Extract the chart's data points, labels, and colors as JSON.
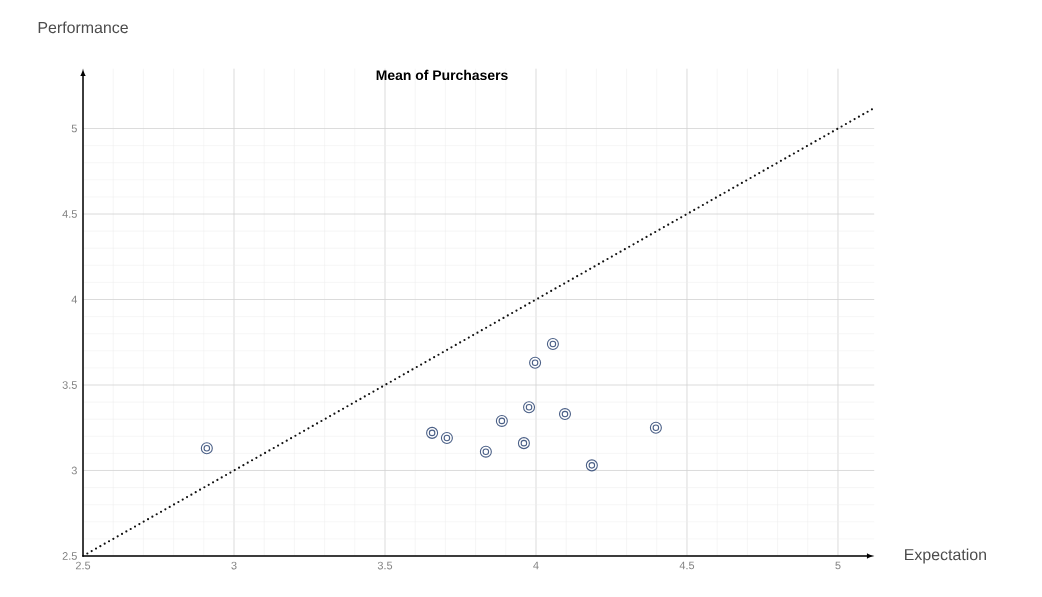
{
  "chart_data": {
    "type": "scatter",
    "title": "Mean of Purchasers",
    "xlabel": "Expectation",
    "ylabel": "Performance",
    "xlim": [
      2.5,
      5.12
    ],
    "ylim": [
      2.5,
      5.35
    ],
    "xticks": [
      2.5,
      3,
      3.5,
      4,
      4.5,
      5
    ],
    "yticks": [
      2.5,
      3,
      3.5,
      4,
      4.5,
      5
    ],
    "grid": true,
    "marker": "circle",
    "series": [
      {
        "color": "#4a5f86",
        "x": [
          2.91,
          3.656,
          3.705,
          3.834,
          3.887,
          3.96,
          3.977,
          3.997,
          4.056,
          4.096,
          4.185,
          4.397
        ],
        "values": [
          3.13,
          3.22,
          3.19,
          3.11,
          3.29,
          3.16,
          3.37,
          3.63,
          3.74,
          3.33,
          3.03,
          3.25
        ]
      },
      {
        "type": "line",
        "color": "#111111",
        "line_style": "dotted",
        "marker": "none",
        "x": [
          2.5,
          5.12
        ],
        "values": [
          2.5,
          5.12
        ]
      }
    ]
  }
}
